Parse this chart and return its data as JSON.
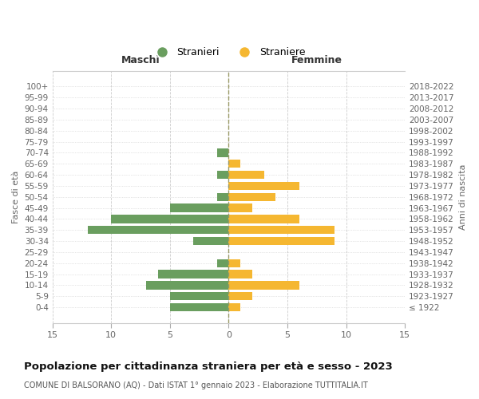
{
  "age_groups": [
    "100+",
    "95-99",
    "90-94",
    "85-89",
    "80-84",
    "75-79",
    "70-74",
    "65-69",
    "60-64",
    "55-59",
    "50-54",
    "45-49",
    "40-44",
    "35-39",
    "30-34",
    "25-29",
    "20-24",
    "15-19",
    "10-14",
    "5-9",
    "0-4"
  ],
  "birth_years": [
    "≤ 1922",
    "1923-1927",
    "1928-1932",
    "1933-1937",
    "1938-1942",
    "1943-1947",
    "1948-1952",
    "1953-1957",
    "1958-1962",
    "1963-1967",
    "1968-1972",
    "1973-1977",
    "1978-1982",
    "1983-1987",
    "1988-1992",
    "1993-1997",
    "1998-2002",
    "2003-2007",
    "2008-2012",
    "2013-2017",
    "2018-2022"
  ],
  "maschi": [
    0,
    0,
    0,
    0,
    0,
    0,
    1,
    0,
    1,
    0,
    1,
    5,
    10,
    12,
    3,
    0,
    1,
    6,
    7,
    5,
    5
  ],
  "femmine": [
    0,
    0,
    0,
    0,
    0,
    0,
    0,
    1,
    3,
    6,
    4,
    2,
    6,
    9,
    9,
    0,
    1,
    2,
    6,
    2,
    1
  ],
  "color_maschi": "#6a9e5f",
  "color_femmine": "#f5b731",
  "title": "Popolazione per cittadinanza straniera per età e sesso - 2023",
  "subtitle": "COMUNE DI BALSORANO (AQ) - Dati ISTAT 1° gennaio 2023 - Elaborazione TUTTITALIA.IT",
  "legend_maschi": "Stranieri",
  "legend_femmine": "Straniere",
  "xlabel_left": "Maschi",
  "xlabel_right": "Femmine",
  "ylabel_left": "Fasce di età",
  "ylabel_right": "Anni di nascita",
  "xlim": 15,
  "background_color": "#ffffff",
  "grid_color": "#cccccc"
}
